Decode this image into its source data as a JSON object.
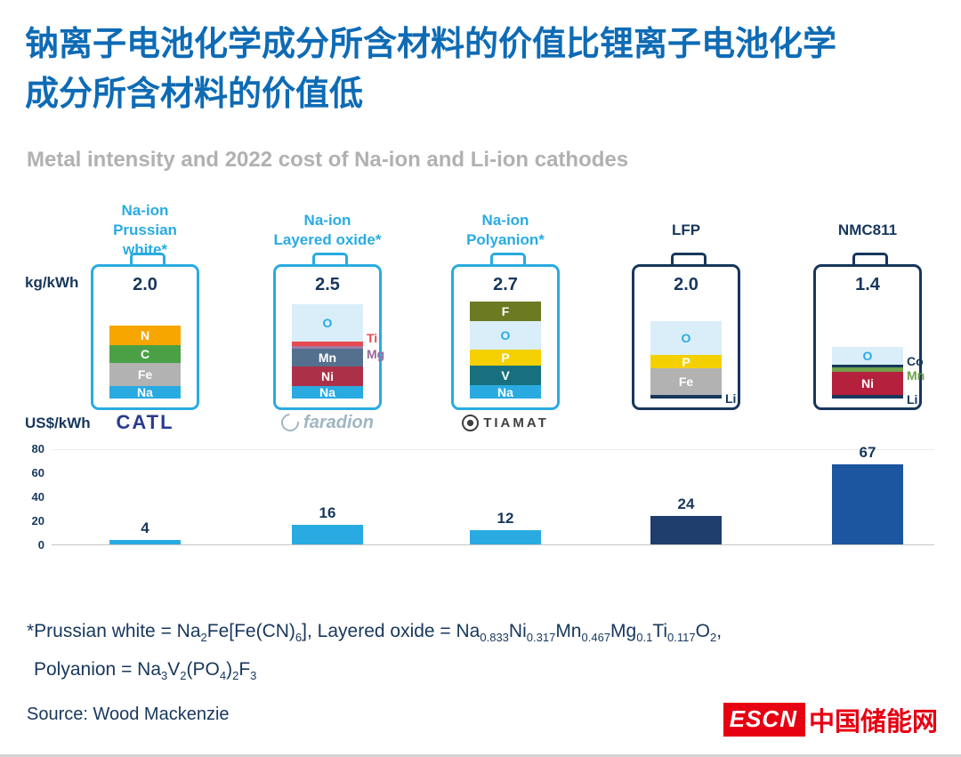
{
  "title": {
    "line1": "钠离子电池化学成分所含材料的价值比锂离子电池化学",
    "line2": "成分所含材料的价值低",
    "color": "#0E6BB5"
  },
  "subtitle": "Metal intensity and 2022 cost of Na-ion and Li-ion cathodes",
  "units": {
    "top": "kg/kWh",
    "bottom": "US$/kWh"
  },
  "colors": {
    "na_accent": "#29ABE2",
    "li_accent": "#17375C",
    "navy_text": "#17375C",
    "title_blue": "#0E6BB5",
    "subtitle_gray": "#B1B1B1",
    "escn_red": "#E60012"
  },
  "batteries": [
    {
      "name_line1": "Na-ion",
      "name_line2": "Prussian white*",
      "label_color": "#29ABE2",
      "accent": "#29ABE2",
      "kg_per_kwh": "2.0",
      "brand": "CATL",
      "segments": [
        {
          "label": "N",
          "color": "#F7A600",
          "h": 22,
          "label_color": "#FFFFFF",
          "pos": "inside"
        },
        {
          "label": "C",
          "color": "#4BA046",
          "h": 20,
          "label_color": "#FFFFFF",
          "pos": "inside"
        },
        {
          "label": "Fe",
          "color": "#B2B2B2",
          "h": 26,
          "label_color": "#FFFFFF",
          "pos": "inside"
        },
        {
          "label": "Na",
          "color": "#29ABE2",
          "h": 14,
          "label_color": "#FFFFFF",
          "pos": "inside"
        }
      ]
    },
    {
      "name_line1": "Na-ion",
      "name_line2": "Layered oxide*",
      "label_color": "#29ABE2",
      "accent": "#29ABE2",
      "kg_per_kwh": "2.5",
      "brand": "faradion",
      "segments": [
        {
          "label": "O",
          "color": "#D9EEF9",
          "h": 42,
          "label_color": "#29ABE2",
          "pos": "inside"
        },
        {
          "label": "Ti",
          "color": "#E8494F",
          "h": 5,
          "label_color": "#E8494F",
          "pos": "right",
          "dy": -7
        },
        {
          "label": "Mg",
          "color": "#A07DA5",
          "h": 3,
          "label_color": "#96689B",
          "pos": "right",
          "dy": 7
        },
        {
          "label": "Mn",
          "color": "#53718E",
          "h": 20,
          "label_color": "#FFFFFF",
          "pos": "inside"
        },
        {
          "label": "Ni",
          "color": "#AC3148",
          "h": 22,
          "label_color": "#FFFFFF",
          "pos": "inside"
        },
        {
          "label": "Na",
          "color": "#29ABE2",
          "h": 14,
          "label_color": "#FFFFFF",
          "pos": "inside"
        }
      ]
    },
    {
      "name_line1": "Na-ion",
      "name_line2": "Polyanion*",
      "label_color": "#29ABE2",
      "accent": "#29ABE2",
      "kg_per_kwh": "2.7",
      "brand": "TIAMAT",
      "segments": [
        {
          "label": "F",
          "color": "#6C7A22",
          "h": 22,
          "label_color": "#FFFFFF",
          "pos": "inside"
        },
        {
          "label": "O",
          "color": "#D9EEF9",
          "h": 32,
          "label_color": "#29ABE2",
          "pos": "inside"
        },
        {
          "label": "P",
          "color": "#F5D000",
          "h": 18,
          "label_color": "#FFFFFF",
          "pos": "inside"
        },
        {
          "label": "V",
          "color": "#18707E",
          "h": 22,
          "label_color": "#FFFFFF",
          "pos": "inside"
        },
        {
          "label": "Na",
          "color": "#29ABE2",
          "h": 15,
          "label_color": "#FFFFFF",
          "pos": "inside"
        }
      ]
    },
    {
      "name_line1": "LFP",
      "name_line2": "",
      "label_color": "#17375C",
      "accent": "#17375C",
      "kg_per_kwh": "2.0",
      "brand": "",
      "segments": [
        {
          "label": "O",
          "color": "#D9EEF9",
          "h": 38,
          "label_color": "#29ABE2",
          "pos": "inside"
        },
        {
          "label": "P",
          "color": "#F5D000",
          "h": 15,
          "label_color": "#FFFFFF",
          "pos": "inside"
        },
        {
          "label": "Fe",
          "color": "#B2B2B2",
          "h": 30,
          "label_color": "#FFFFFF",
          "pos": "inside"
        },
        {
          "label": "Li",
          "color": "#17375C",
          "h": 4,
          "label_color": "#17375C",
          "pos": "right",
          "dy": 2
        }
      ]
    },
    {
      "name_line1": "NMC811",
      "name_line2": "",
      "label_color": "#17375C",
      "accent": "#17375C",
      "kg_per_kwh": "1.4",
      "brand": "",
      "segments": [
        {
          "label": "O",
          "color": "#D9EEF9",
          "h": 20,
          "label_color": "#29ABE2",
          "pos": "inside"
        },
        {
          "label": "Co",
          "color": "#17375C",
          "h": 3,
          "label_color": "#17375C",
          "pos": "right",
          "dy": -6
        },
        {
          "label": "Mn",
          "color": "#6FA04A",
          "h": 5,
          "label_color": "#6FA04A",
          "pos": "right",
          "dy": 6
        },
        {
          "label": "Ni",
          "color": "#B5203C",
          "h": 26,
          "label_color": "#FFFFFF",
          "pos": "inside"
        },
        {
          "label": "Li",
          "color": "#17375C",
          "h": 4,
          "label_color": "#17375C",
          "pos": "right",
          "dy": 3
        }
      ]
    }
  ],
  "chart_data": {
    "type": "bar",
    "title": "Metal intensity and 2022 cost of Na-ion and Li-ion cathodes",
    "categories": [
      "Na-ion Prussian white*",
      "Na-ion Layered oxide*",
      "Na-ion Polyanion*",
      "LFP",
      "NMC811"
    ],
    "values": [
      4,
      16,
      12,
      24,
      67
    ],
    "intensity_kg_per_kwh": [
      2.0,
      2.5,
      2.7,
      2.0,
      1.4
    ],
    "xlabel": "",
    "ylabel": "US$/kWh",
    "ylim": [
      0,
      80
    ],
    "yticks": [
      0,
      20,
      40,
      60,
      80
    ],
    "ytick_labels": [
      "80",
      "60",
      "40",
      "20",
      "0"
    ],
    "grid": false,
    "legend": false,
    "bar_colors": [
      "#29ABE2",
      "#29ABE2",
      "#29ABE2",
      "#1F3E6E",
      "#1C55A0"
    ]
  },
  "brands": {
    "catl": {
      "text": "CATL",
      "color": "#2A3B8F"
    },
    "faradion": {
      "text": "faradion",
      "color": "#9FB6C3"
    },
    "tiamat": {
      "text": "TIAMAT",
      "color": "#3F3F3E"
    }
  },
  "footnote": {
    "line1": [
      {
        "t": "*Prussian white = Na"
      },
      {
        "t": "2",
        "sub": true
      },
      {
        "t": "Fe[Fe(CN)"
      },
      {
        "t": "6",
        "sub": true
      },
      {
        "t": "], Layered oxide = Na"
      },
      {
        "t": "0.833",
        "sub": true
      },
      {
        "t": "Ni"
      },
      {
        "t": "0.317",
        "sub": true
      },
      {
        "t": "Mn"
      },
      {
        "t": "0.467",
        "sub": true
      },
      {
        "t": "Mg"
      },
      {
        "t": "0.1",
        "sub": true
      },
      {
        "t": "Ti"
      },
      {
        "t": "0.117",
        "sub": true
      },
      {
        "t": "O"
      },
      {
        "t": "2",
        "sub": true
      },
      {
        "t": ","
      }
    ],
    "line2": [
      {
        "t": "Polyanion = Na"
      },
      {
        "t": "3",
        "sub": true
      },
      {
        "t": "V"
      },
      {
        "t": "2",
        "sub": true
      },
      {
        "t": "(PO"
      },
      {
        "t": "4",
        "sub": true
      },
      {
        "t": ")"
      },
      {
        "t": "2",
        "sub": true
      },
      {
        "t": "F"
      },
      {
        "t": "3",
        "sub": true
      }
    ]
  },
  "source": "Source: Wood Mackenzie",
  "logo": {
    "escn": "ESCN",
    "site": "中国储能网",
    "color": "#E60012"
  }
}
